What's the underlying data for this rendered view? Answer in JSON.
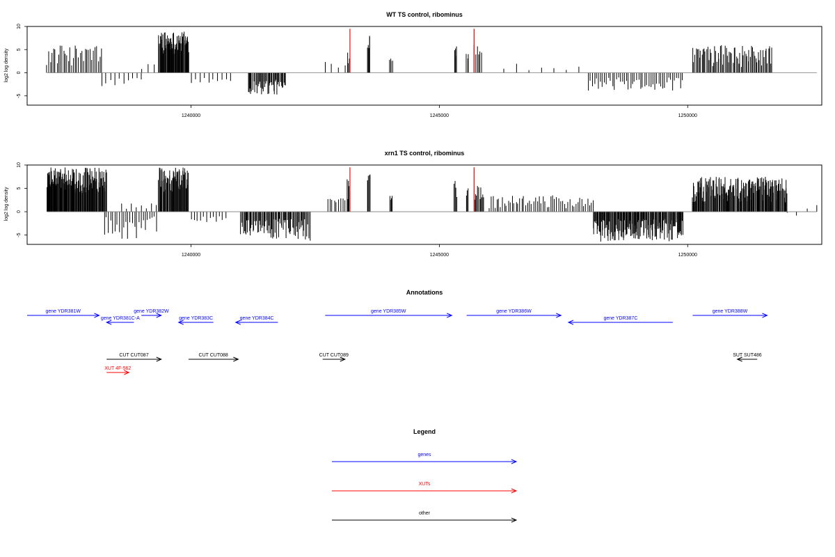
{
  "chart_data": [
    {
      "type": "bar",
      "title": "WT TS control, ribominus",
      "ylabel": "log2 log density",
      "xlim": [
        1236700,
        1252700
      ],
      "ylim": [
        -7,
        10
      ],
      "yticks": [
        -5,
        0,
        5,
        10
      ],
      "xticks": [
        1240000,
        1245000,
        1250000
      ],
      "grid": false,
      "bar_color": "#000000",
      "neutral_color": "#777777",
      "highlight_color": "#ff0000",
      "clusters": [
        {
          "start": 1237100,
          "end": 1238200,
          "min": 1.5,
          "max": 6.0,
          "n": 34
        },
        {
          "start": 1238200,
          "end": 1239000,
          "min": -3.5,
          "max": -1.0,
          "n": 10
        },
        {
          "start": 1239000,
          "end": 1239400,
          "min": 0.5,
          "max": 2.5,
          "n": 4
        },
        {
          "start": 1239350,
          "end": 1239950,
          "min": 4.0,
          "max": 9.0,
          "n": 70
        },
        {
          "start": 1240000,
          "end": 1240800,
          "min": -2.5,
          "max": -0.8,
          "n": 10
        },
        {
          "start": 1241150,
          "end": 1241900,
          "min": -5.0,
          "max": -1.5,
          "n": 45
        },
        {
          "start": 1242700,
          "end": 1243100,
          "min": 1.0,
          "max": 2.5,
          "n": 4
        },
        {
          "start": 1243150,
          "end": 1243200,
          "min": 2.0,
          "max": 6.5,
          "n": 4
        },
        {
          "start": 1243550,
          "end": 1243600,
          "min": 5.0,
          "max": 9.0,
          "n": 5
        },
        {
          "start": 1244000,
          "end": 1244050,
          "min": 2.5,
          "max": 3.5,
          "n": 4
        },
        {
          "start": 1245300,
          "end": 1245350,
          "min": 3.0,
          "max": 6.5,
          "n": 4
        },
        {
          "start": 1245550,
          "end": 1245580,
          "min": 3.0,
          "max": 5.0,
          "n": 3
        },
        {
          "start": 1245700,
          "end": 1245850,
          "min": 3.0,
          "max": 6.5,
          "n": 6
        },
        {
          "start": 1246300,
          "end": 1247800,
          "min": 0.5,
          "max": 2.0,
          "n": 7
        },
        {
          "start": 1248000,
          "end": 1249900,
          "min": -4.0,
          "max": -1.0,
          "n": 48
        },
        {
          "start": 1250100,
          "end": 1251700,
          "min": 1.0,
          "max": 6.0,
          "n": 70
        }
      ],
      "highlights": [
        {
          "x": 1243200,
          "y": 9.5
        },
        {
          "x": 1245700,
          "y": 9.5
        }
      ]
    },
    {
      "type": "bar",
      "title": "xrn1 TS control, ribominus",
      "ylabel": "log2 log density",
      "xlim": [
        1236700,
        1252700
      ],
      "ylim": [
        -7,
        10
      ],
      "yticks": [
        -5,
        0,
        5,
        10
      ],
      "xticks": [
        1240000,
        1245000,
        1250000
      ],
      "grid": false,
      "bar_color": "#000000",
      "neutral_color": "#777777",
      "highlight_color": "#ff0000",
      "clusters": [
        {
          "start": 1237100,
          "end": 1238300,
          "min": 4.0,
          "max": 9.5,
          "n": 150
        },
        {
          "start": 1238250,
          "end": 1239300,
          "min": -6.0,
          "max": -1.0,
          "n": 25
        },
        {
          "start": 1238600,
          "end": 1239300,
          "min": 0.5,
          "max": 2.0,
          "n": 8
        },
        {
          "start": 1239350,
          "end": 1239950,
          "min": 4.0,
          "max": 9.5,
          "n": 70
        },
        {
          "start": 1240000,
          "end": 1240700,
          "min": -2.5,
          "max": -0.8,
          "n": 12
        },
        {
          "start": 1241000,
          "end": 1242400,
          "min": -6.5,
          "max": -1.5,
          "n": 80
        },
        {
          "start": 1242750,
          "end": 1243150,
          "min": 1.0,
          "max": 3.5,
          "n": 10
        },
        {
          "start": 1243150,
          "end": 1243200,
          "min": 3.0,
          "max": 7.0,
          "n": 4
        },
        {
          "start": 1243550,
          "end": 1243600,
          "min": 5.0,
          "max": 8.5,
          "n": 5
        },
        {
          "start": 1244000,
          "end": 1244050,
          "min": 2.5,
          "max": 3.5,
          "n": 4
        },
        {
          "start": 1245300,
          "end": 1245350,
          "min": 3.0,
          "max": 7.0,
          "n": 4
        },
        {
          "start": 1245550,
          "end": 1245580,
          "min": 3.0,
          "max": 5.0,
          "n": 3
        },
        {
          "start": 1245700,
          "end": 1245900,
          "min": 2.0,
          "max": 5.5,
          "n": 10
        },
        {
          "start": 1246000,
          "end": 1248100,
          "min": 0.5,
          "max": 3.5,
          "n": 55
        },
        {
          "start": 1248100,
          "end": 1249900,
          "min": -6.5,
          "max": -1.5,
          "n": 150
        },
        {
          "start": 1250100,
          "end": 1252000,
          "min": 2.0,
          "max": 7.5,
          "n": 180
        },
        {
          "start": 1252000,
          "end": 1252600,
          "min": -1.5,
          "max": 1.5,
          "n": 4
        }
      ],
      "highlights": [
        {
          "x": 1243200,
          "y": 9.5
        },
        {
          "x": 1245700,
          "y": 9.5
        }
      ]
    }
  ],
  "annotations": {
    "title": "Annotations",
    "colors": {
      "gene": "#0000ff",
      "xut": "#ff0000",
      "other": "#000000"
    },
    "items": [
      {
        "label": "gene YDR381W",
        "kind": "gene",
        "start": 1236700,
        "end": 1238150,
        "strand": "+",
        "row": 0
      },
      {
        "label": "gene YDR381C-A",
        "kind": "gene",
        "start": 1238300,
        "end": 1238850,
        "strand": "-",
        "row": 1
      },
      {
        "label": "gene YDR382W",
        "kind": "gene",
        "start": 1239000,
        "end": 1239400,
        "strand": "+",
        "row": 0
      },
      {
        "label": "gene YDR383C",
        "kind": "gene",
        "start": 1239750,
        "end": 1240450,
        "strand": "-",
        "row": 1
      },
      {
        "label": "gene YDR384C",
        "kind": "gene",
        "start": 1240900,
        "end": 1241750,
        "strand": "-",
        "row": 1
      },
      {
        "label": "gene YDR385W",
        "kind": "gene",
        "start": 1242700,
        "end": 1245250,
        "strand": "+",
        "row": 0
      },
      {
        "label": "gene YDR386W",
        "kind": "gene",
        "start": 1245550,
        "end": 1247450,
        "strand": "+",
        "row": 0
      },
      {
        "label": "gene YDR387C",
        "kind": "gene",
        "start": 1247600,
        "end": 1249700,
        "strand": "-",
        "row": 1
      },
      {
        "label": "gene YDR388W",
        "kind": "gene",
        "start": 1250100,
        "end": 1251600,
        "strand": "+",
        "row": 0
      },
      {
        "label": "CUT CUT087",
        "kind": "other",
        "start": 1238300,
        "end": 1239400,
        "strand": "+",
        "row": 2
      },
      {
        "label": "CUT CUT088",
        "kind": "other",
        "start": 1239950,
        "end": 1240950,
        "strand": "+",
        "row": 2
      },
      {
        "label": "CUT CUT089",
        "kind": "other",
        "start": 1242650,
        "end": 1243100,
        "strand": "+",
        "row": 2
      },
      {
        "label": "SUT SUT486",
        "kind": "other",
        "start": 1251000,
        "end": 1251400,
        "strand": "-",
        "row": 2
      },
      {
        "label": "XUT 4F-562",
        "kind": "xut",
        "start": 1238300,
        "end": 1238750,
        "strand": "+",
        "row": 3
      }
    ]
  },
  "legend": {
    "title": "Legend",
    "items": [
      {
        "label": "genes",
        "kind": "gene"
      },
      {
        "label": "XUTs",
        "kind": "xut"
      },
      {
        "label": "other",
        "kind": "other"
      }
    ]
  }
}
